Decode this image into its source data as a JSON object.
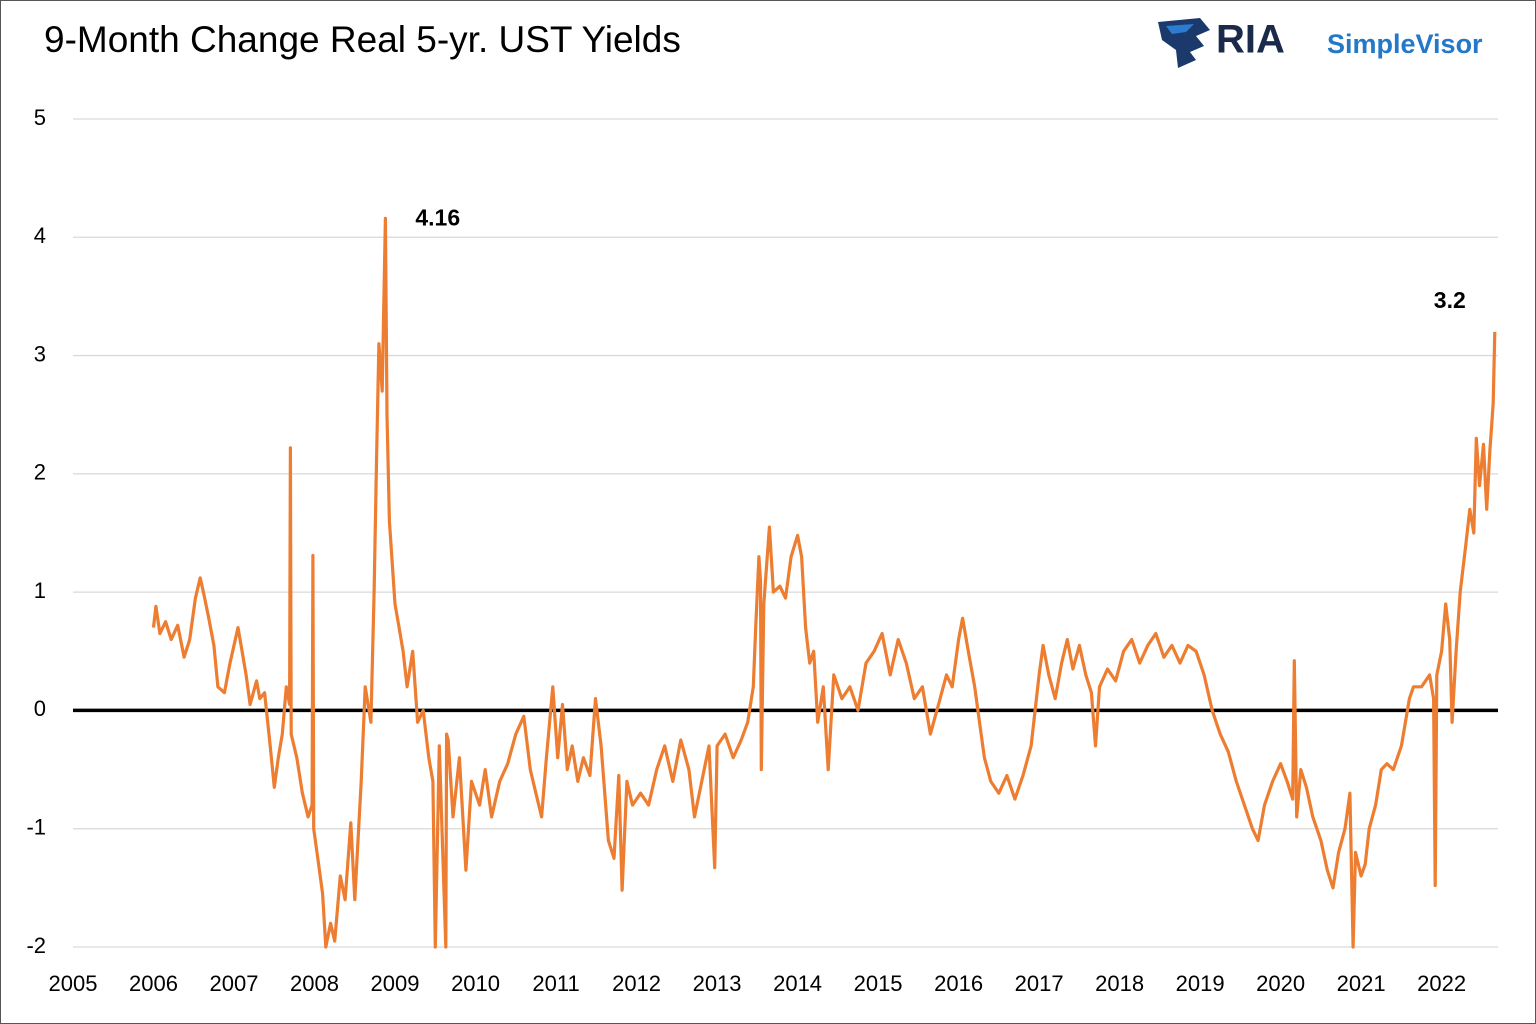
{
  "chart_data": {
    "type": "line",
    "title": "9-Month Change Real 5-yr. UST Yields",
    "brand": {
      "name": "RIA",
      "product": "SimpleVisor"
    },
    "xlim": [
      2005,
      2022.7
    ],
    "xticks": [
      2005,
      2006,
      2007,
      2008,
      2009,
      2010,
      2011,
      2012,
      2013,
      2014,
      2015,
      2016,
      2017,
      2018,
      2019,
      2020,
      2021,
      2022
    ],
    "ylim": [
      -2,
      5
    ],
    "yticks": [
      -2,
      -1,
      0,
      1,
      2,
      3,
      4,
      5
    ],
    "grid": true,
    "x": [
      2006.0,
      2006.03,
      2006.08,
      2006.15,
      2006.22,
      2006.3,
      2006.38,
      2006.45,
      2006.52,
      2006.58,
      2006.62,
      2006.68,
      2006.75,
      2006.8,
      2006.88,
      2006.95,
      2007.0,
      2007.05,
      2007.1,
      2007.15,
      2007.2,
      2007.28,
      2007.32,
      2007.38,
      2007.45,
      2007.5,
      2007.55,
      2007.6,
      2007.65,
      2007.69,
      2007.7,
      2007.71,
      2007.78,
      2007.85,
      2007.92,
      2007.97,
      2007.98,
      2007.99,
      2008.05,
      2008.1,
      2008.14,
      2008.2,
      2008.25,
      2008.32,
      2008.38,
      2008.45,
      2008.5,
      2008.58,
      2008.63,
      2008.7,
      2008.74,
      2008.77,
      2008.8,
      2008.84,
      2008.88,
      2008.9,
      2008.93,
      2008.97,
      2009.0,
      2009.05,
      2009.1,
      2009.15,
      2009.22,
      2009.28,
      2009.35,
      2009.42,
      2009.47,
      2009.5,
      2009.55,
      2009.63,
      2009.64,
      2009.66,
      2009.72,
      2009.8,
      2009.88,
      2009.95,
      2010.05,
      2010.12,
      2010.2,
      2010.3,
      2010.4,
      2010.5,
      2010.6,
      2010.68,
      2010.75,
      2010.82,
      2010.88,
      2010.96,
      2011.02,
      2011.08,
      2011.14,
      2011.2,
      2011.27,
      2011.34,
      2011.42,
      2011.49,
      2011.56,
      2011.65,
      2011.72,
      2011.78,
      2011.82,
      2011.88,
      2011.95,
      2012.05,
      2012.15,
      2012.25,
      2012.35,
      2012.45,
      2012.55,
      2012.65,
      2012.72,
      2012.9,
      2012.97,
      2013.0,
      2013.1,
      2013.2,
      2013.3,
      2013.38,
      2013.45,
      2013.48,
      2013.52,
      2013.54,
      2013.55,
      2013.58,
      2013.65,
      2013.7,
      2013.78,
      2013.85,
      2013.92,
      2014.0,
      2014.05,
      2014.1,
      2014.15,
      2014.2,
      2014.25,
      2014.32,
      2014.38,
      2014.45,
      2014.55,
      2014.65,
      2014.75,
      2014.85,
      2014.95,
      2015.05,
      2015.15,
      2015.25,
      2015.35,
      2015.45,
      2015.55,
      2015.65,
      2015.75,
      2015.85,
      2015.92,
      2016.0,
      2016.05,
      2016.12,
      2016.2,
      2016.25,
      2016.32,
      2016.4,
      2016.5,
      2016.6,
      2016.7,
      2016.8,
      2016.9,
      2016.95,
      2017.0,
      2017.05,
      2017.12,
      2017.2,
      2017.28,
      2017.35,
      2017.42,
      2017.5,
      2017.58,
      2017.65,
      2017.7,
      2017.75,
      2017.85,
      2017.95,
      2018.05,
      2018.15,
      2018.25,
      2018.35,
      2018.45,
      2018.55,
      2018.65,
      2018.75,
      2018.85,
      2018.95,
      2019.05,
      2019.15,
      2019.25,
      2019.35,
      2019.45,
      2019.55,
      2019.65,
      2019.72,
      2019.8,
      2019.9,
      2020.0,
      2020.08,
      2020.15,
      2020.17,
      2020.2,
      2020.25,
      2020.32,
      2020.4,
      2020.5,
      2020.58,
      2020.65,
      2020.72,
      2020.8,
      2020.86,
      2020.9,
      2020.93,
      2021.0,
      2021.05,
      2021.1,
      2021.18,
      2021.25,
      2021.32,
      2021.4,
      2021.5,
      2021.55,
      2021.6,
      2021.65,
      2021.75,
      2021.85,
      2021.9,
      2021.92,
      2021.94,
      2022.0,
      2022.05,
      2022.1,
      2022.13,
      2022.18,
      2022.23,
      2022.3,
      2022.35,
      2022.4,
      2022.43,
      2022.47,
      2022.52,
      2022.56,
      2022.6,
      2022.62,
      2022.64,
      2022.66
    ],
    "series": [
      {
        "name": "9-Month Change Real 5-yr. UST Yields",
        "color": "#ed7d31",
        "values": [
          0.7,
          0.88,
          0.65,
          0.75,
          0.6,
          0.72,
          0.45,
          0.6,
          0.95,
          1.12,
          1.0,
          0.8,
          0.55,
          0.2,
          0.15,
          0.4,
          0.55,
          0.7,
          0.5,
          0.3,
          0.05,
          0.25,
          0.1,
          0.15,
          -0.3,
          -0.65,
          -0.4,
          -0.2,
          0.2,
          0.05,
          2.22,
          -0.2,
          -0.4,
          -0.7,
          -0.9,
          -0.8,
          1.31,
          -1.0,
          -1.3,
          -1.55,
          -2.0,
          -1.8,
          -1.95,
          -1.4,
          -1.6,
          -0.95,
          -1.6,
          -0.6,
          0.2,
          -0.1,
          1.0,
          2.1,
          3.1,
          2.7,
          4.16,
          2.5,
          1.6,
          1.2,
          0.9,
          0.7,
          0.5,
          0.2,
          0.5,
          -0.1,
          0.0,
          -0.4,
          -0.6,
          -2.0,
          -0.3,
          -2.0,
          -0.2,
          -0.25,
          -0.9,
          -0.4,
          -1.35,
          -0.6,
          -0.8,
          -0.5,
          -0.9,
          -0.6,
          -0.45,
          -0.2,
          -0.05,
          -0.5,
          -0.7,
          -0.9,
          -0.4,
          0.2,
          -0.4,
          0.05,
          -0.5,
          -0.3,
          -0.6,
          -0.4,
          -0.55,
          0.1,
          -0.3,
          -1.1,
          -1.25,
          -0.55,
          -1.52,
          -0.6,
          -0.8,
          -0.7,
          -0.8,
          -0.5,
          -0.3,
          -0.6,
          -0.25,
          -0.5,
          -0.9,
          -0.3,
          -1.33,
          -0.3,
          -0.2,
          -0.4,
          -0.25,
          -0.1,
          0.2,
          0.7,
          1.3,
          1.1,
          -0.5,
          0.9,
          1.55,
          1.0,
          1.05,
          0.95,
          1.3,
          1.48,
          1.3,
          0.7,
          0.4,
          0.5,
          -0.1,
          0.2,
          -0.5,
          0.3,
          0.1,
          0.2,
          0.0,
          0.4,
          0.5,
          0.65,
          0.3,
          0.6,
          0.4,
          0.1,
          0.2,
          -0.2,
          0.05,
          0.3,
          0.2,
          0.6,
          0.78,
          0.5,
          0.2,
          -0.05,
          -0.4,
          -0.6,
          -0.7,
          -0.55,
          -0.75,
          -0.55,
          -0.3,
          0.0,
          0.3,
          0.55,
          0.3,
          0.1,
          0.4,
          0.6,
          0.35,
          0.55,
          0.3,
          0.15,
          -0.3,
          0.2,
          0.35,
          0.25,
          0.5,
          0.6,
          0.4,
          0.55,
          0.65,
          0.45,
          0.55,
          0.4,
          0.55,
          0.5,
          0.3,
          0.0,
          -0.2,
          -0.35,
          -0.6,
          -0.8,
          -1.0,
          -1.1,
          -0.8,
          -0.6,
          -0.45,
          -0.6,
          -0.75,
          0.42,
          -0.9,
          -0.5,
          -0.65,
          -0.9,
          -1.1,
          -1.35,
          -1.5,
          -1.2,
          -1.0,
          -0.7,
          -2.0,
          -1.2,
          -1.4,
          -1.3,
          -1.0,
          -0.8,
          -0.5,
          -0.45,
          -0.5,
          -0.3,
          -0.1,
          0.1,
          0.2,
          0.2,
          0.3,
          0.1,
          -1.48,
          0.3,
          0.5,
          0.9,
          0.6,
          -0.1,
          0.5,
          1.0,
          1.4,
          1.7,
          1.5,
          2.3,
          1.9,
          2.25,
          1.7,
          2.2,
          2.4,
          2.6,
          3.2
        ]
      }
    ],
    "annotations": [
      {
        "x": 2008.88,
        "y": 4.16
      },
      {
        "x": 2022.66,
        "y": 3.2
      }
    ]
  }
}
